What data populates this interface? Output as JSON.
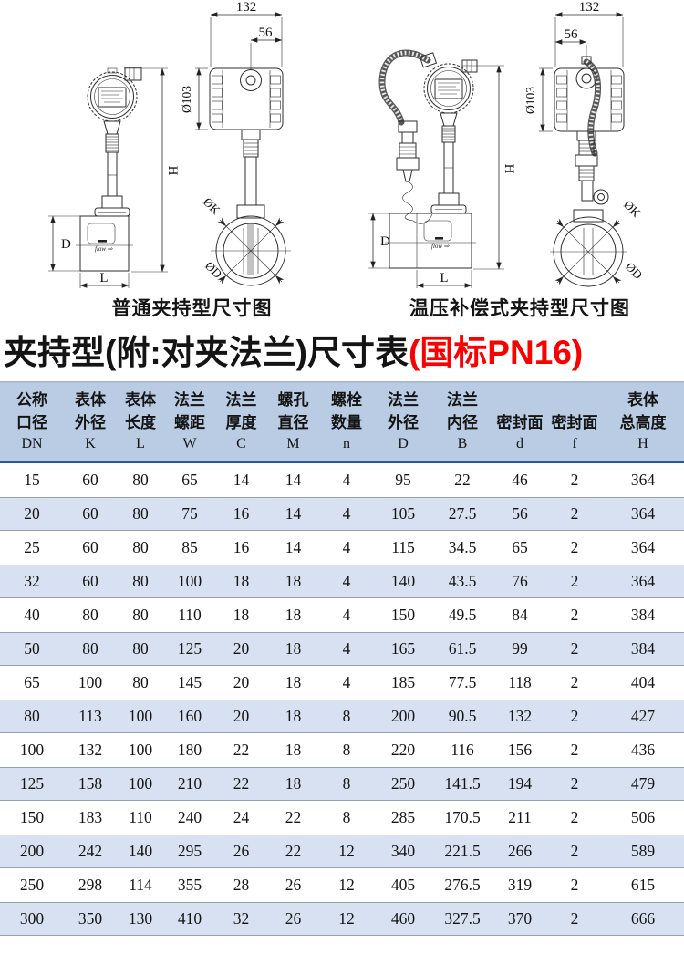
{
  "diagrams": {
    "left": {
      "caption": "普通夹持型尺寸图",
      "labels": {
        "w132": "132",
        "w56": "56",
        "d103": "Ø103",
        "h": "H",
        "dk": "ØK",
        "dd": "ØD",
        "d": "D",
        "l": "L",
        "flow": "flow ⇨"
      }
    },
    "right": {
      "caption": "温压补偿式夹持型尺寸图",
      "labels": {
        "w132": "132",
        "w56": "56",
        "d103": "Ø103",
        "h": "H",
        "dk": "ØK",
        "dd": "ØD",
        "d": "D",
        "l": "L",
        "flow": "flow ⇨"
      }
    }
  },
  "title": {
    "black": "夹持型(附:对夹法兰)尺寸表",
    "red": "(国标PN16)"
  },
  "table": {
    "headers": [
      {
        "line1": "公称",
        "line2": "口径",
        "symbol": "DN"
      },
      {
        "line1": "表体",
        "line2": "外径",
        "symbol": "K"
      },
      {
        "line1": "表体",
        "line2": "长度",
        "symbol": "L"
      },
      {
        "line1": "法兰",
        "line2": "螺距",
        "symbol": "W"
      },
      {
        "line1": "法兰",
        "line2": "厚度",
        "symbol": "C"
      },
      {
        "line1": "螺孔",
        "line2": "直径",
        "symbol": "M"
      },
      {
        "line1": "螺栓",
        "line2": "数量",
        "symbol": "n"
      },
      {
        "line1": "法兰",
        "line2": "外径",
        "symbol": "D"
      },
      {
        "line1": "法兰",
        "line2": "内径",
        "symbol": "B"
      },
      {
        "line1": "",
        "line2": "密封面",
        "symbol": "d"
      },
      {
        "line1": "",
        "line2": "密封面",
        "symbol": "f"
      },
      {
        "line1": "表体",
        "line2": "总高度",
        "symbol": "H"
      }
    ],
    "rows": [
      [
        15,
        60,
        80,
        65,
        14,
        14,
        4,
        95,
        22,
        46,
        2,
        364
      ],
      [
        20,
        60,
        80,
        75,
        16,
        14,
        4,
        105,
        27.5,
        56,
        2,
        364
      ],
      [
        25,
        60,
        80,
        85,
        16,
        14,
        4,
        115,
        34.5,
        65,
        2,
        364
      ],
      [
        32,
        60,
        80,
        100,
        18,
        18,
        4,
        140,
        43.5,
        76,
        2,
        364
      ],
      [
        40,
        80,
        80,
        110,
        18,
        18,
        4,
        150,
        49.5,
        84,
        2,
        384
      ],
      [
        50,
        80,
        80,
        125,
        20,
        18,
        4,
        165,
        61.5,
        99,
        2,
        384
      ],
      [
        65,
        100,
        80,
        145,
        20,
        18,
        4,
        185,
        77.5,
        118,
        2,
        404
      ],
      [
        80,
        113,
        100,
        160,
        20,
        18,
        8,
        200,
        90.5,
        132,
        2,
        427
      ],
      [
        100,
        132,
        100,
        180,
        22,
        18,
        8,
        220,
        116,
        156,
        2,
        436
      ],
      [
        125,
        158,
        100,
        210,
        22,
        18,
        8,
        250,
        141.5,
        194,
        2,
        479
      ],
      [
        150,
        183,
        110,
        240,
        24,
        22,
        8,
        285,
        170.5,
        211,
        2,
        506
      ],
      [
        200,
        242,
        140,
        295,
        26,
        22,
        12,
        340,
        221.5,
        266,
        2,
        589
      ],
      [
        250,
        298,
        114,
        355,
        28,
        26,
        12,
        405,
        276.5,
        319,
        2,
        615
      ],
      [
        300,
        350,
        130,
        410,
        32,
        26,
        12,
        460,
        327.5,
        370,
        2,
        666
      ]
    ]
  },
  "colors": {
    "header_bg": "#b9cce3",
    "row_alt_bg": "#d7e1f1",
    "header_rule": "#1c5aa6",
    "accent_red": "#fb0000"
  }
}
